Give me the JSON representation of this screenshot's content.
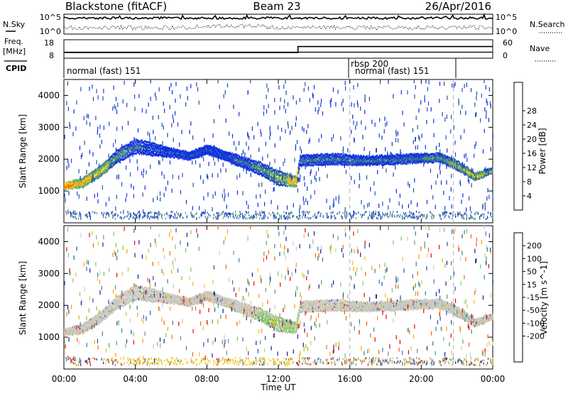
{
  "header": {
    "station": "Blackstone (fitACF)",
    "beam": "Beam 23",
    "date": "26/Apr/2016"
  },
  "noise_panel": {
    "left_label": "N.Sky",
    "right_label": "N.Search",
    "left_ticks": [
      "10^5",
      "10^0"
    ],
    "right_ticks": [
      "10^5",
      "10^0"
    ]
  },
  "freq_panel": {
    "left_label_1": "Freq.",
    "left_label_2": "[MHz]",
    "right_label": "Nave",
    "left_ticks": [
      "18",
      "8"
    ],
    "right_ticks": [
      "60",
      "0"
    ],
    "freq_mhz": 10.5,
    "nave_segments": [
      {
        "start_hour": 0,
        "end_hour": 13.1,
        "value": 20
      },
      {
        "start_hour": 13.1,
        "end_hour": 24,
        "value": 41
      }
    ]
  },
  "cpid_panel": {
    "label": "CPID",
    "segments": [
      {
        "label": "normal (fast) 151",
        "start_hour": 0,
        "end_hour": 16.0
      },
      {
        "label": "rbsp 200",
        "start_hour": 16.0,
        "end_hour": 16.05
      },
      {
        "label": "normal (fast) 151",
        "start_hour": 16.05,
        "end_hour": 21.8
      }
    ]
  },
  "x_axis": {
    "label": "Time UT",
    "ticks": [
      "00:00",
      "04:00",
      "08:00",
      "12:00",
      "16:00",
      "20:00",
      "00:00"
    ],
    "range_hours": [
      0,
      24
    ],
    "dashed_hours": [
      16.0,
      21.8
    ]
  },
  "chart_data": [
    {
      "type": "heatmap",
      "title": "Power",
      "ylabel": "Slant Range [km]",
      "xlabel": "",
      "ylim": [
        0,
        4500
      ],
      "yticks": [
        "1000",
        "2000",
        "3000",
        "4000"
      ],
      "colorbar": {
        "label": "Power [dB]",
        "ticks": [
          "4",
          "8",
          "12",
          "16",
          "20",
          "24",
          "28"
        ],
        "colors": [
          "#1030e0",
          "#2050b0",
          "#3a7a95",
          "#5c9a70",
          "#7fbf50",
          "#ffd000",
          "#ff9a00",
          "#ff6000",
          "#ee0000"
        ]
      },
      "echo_band": [
        {
          "hour": 0,
          "range_km": 1150,
          "width_km": 150,
          "level": 7
        },
        {
          "hour": 1,
          "range_km": 1250,
          "width_km": 250,
          "level": 6
        },
        {
          "hour": 2,
          "range_km": 1600,
          "width_km": 300,
          "level": 5
        },
        {
          "hour": 3,
          "range_km": 2100,
          "width_km": 350,
          "level": 3
        },
        {
          "hour": 4,
          "range_km": 2400,
          "width_km": 400,
          "level": 2
        },
        {
          "hour": 5,
          "range_km": 2300,
          "width_km": 350,
          "level": 1
        },
        {
          "hour": 6,
          "range_km": 2200,
          "width_km": 250,
          "level": 1
        },
        {
          "hour": 7,
          "range_km": 2100,
          "width_km": 200,
          "level": 1
        },
        {
          "hour": 8,
          "range_km": 2300,
          "width_km": 250,
          "level": 1
        },
        {
          "hour": 9,
          "range_km": 2100,
          "width_km": 250,
          "level": 1
        },
        {
          "hour": 10,
          "range_km": 1900,
          "width_km": 300,
          "level": 2
        },
        {
          "hour": 11,
          "range_km": 1700,
          "width_km": 350,
          "level": 3
        },
        {
          "hour": 12,
          "range_km": 1400,
          "width_km": 400,
          "level": 4
        },
        {
          "hour": 13,
          "range_km": 1300,
          "width_km": 300,
          "level": 6
        },
        {
          "hour": 13.2,
          "range_km": 1950,
          "width_km": 300,
          "level": 2
        },
        {
          "hour": 15,
          "range_km": 2000,
          "width_km": 300,
          "level": 2
        },
        {
          "hour": 17,
          "range_km": 1950,
          "width_km": 250,
          "level": 2
        },
        {
          "hour": 19,
          "range_km": 2000,
          "width_km": 250,
          "level": 2
        },
        {
          "hour": 21,
          "range_km": 2050,
          "width_km": 250,
          "level": 3
        },
        {
          "hour": 22,
          "range_km": 1800,
          "width_km": 250,
          "level": 4
        },
        {
          "hour": 23,
          "range_km": 1450,
          "width_km": 200,
          "level": 5
        },
        {
          "hour": 24,
          "range_km": 1650,
          "width_km": 150,
          "level": 4
        }
      ]
    },
    {
      "type": "heatmap",
      "title": "Velocity",
      "ylabel": "Slant Range [km]",
      "xlabel": "Time UT",
      "ylim": [
        0,
        4500
      ],
      "yticks": [
        "1000",
        "2000",
        "3000",
        "4000"
      ],
      "colorbar": {
        "label": "Velocity [m s^-1]",
        "ticks": [
          "200",
          "100",
          "50",
          "15",
          "-15",
          "-50",
          "-100",
          "-200"
        ],
        "colors": [
          "#1a1aa0",
          "#2050b0",
          "#3a7a95",
          "#5c9a70",
          "#7bc850",
          "#c8c8c0",
          "#f0c020",
          "#ff9a00",
          "#ff6000",
          "#ee0000"
        ]
      },
      "echo_band_color": "#c8c8c0"
    }
  ]
}
